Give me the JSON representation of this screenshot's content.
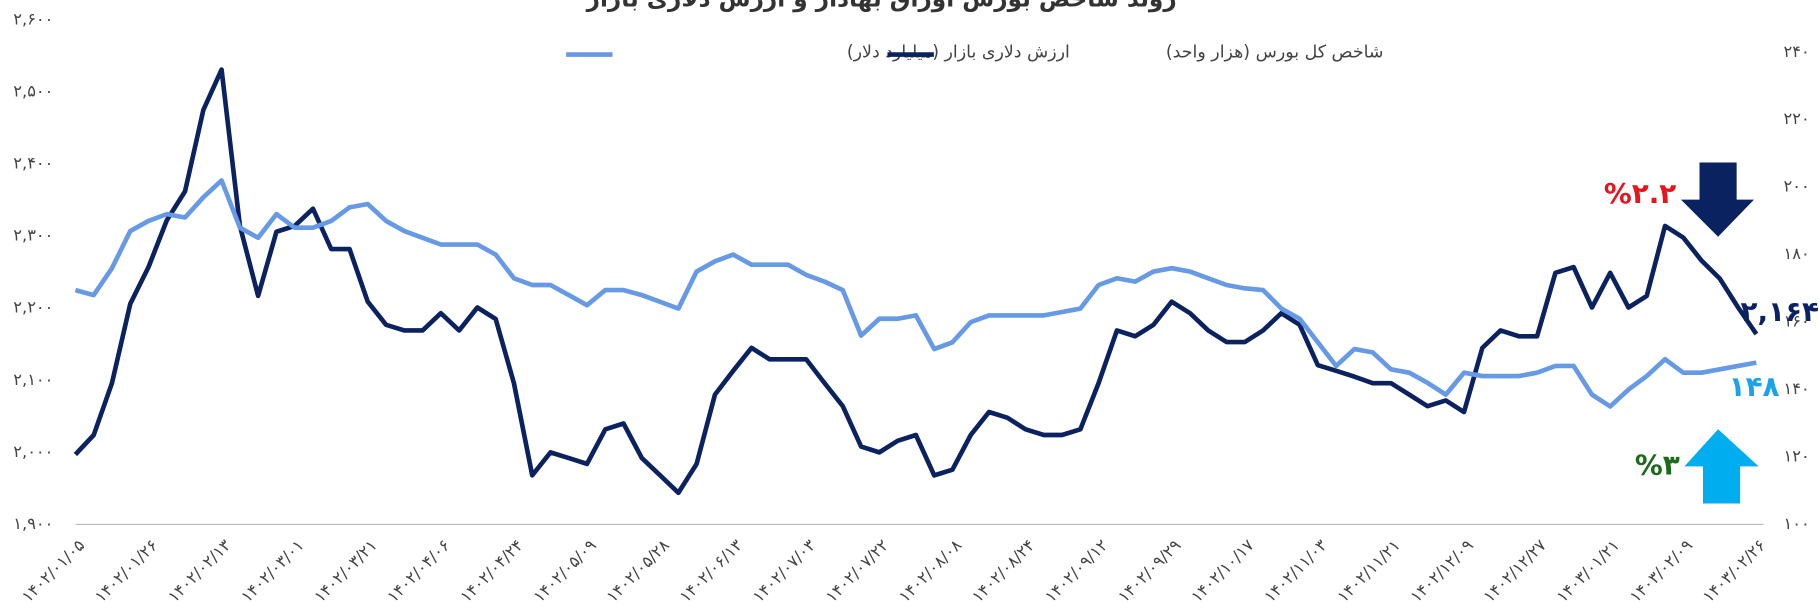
{
  "chart_data": {
    "type": "line",
    "title": "روند شاخص بورس اوراق بهادار و ارزش دلاری بازار",
    "categories": [
      "۱۴۰۲/۰۱/۰۵",
      null,
      null,
      null,
      "۱۴۰۲/۰۱/۲۶",
      null,
      null,
      null,
      "۱۴۰۲/۰۲/۱۳",
      null,
      null,
      null,
      "۱۴۰۲/۰۳/۰۱",
      null,
      null,
      null,
      "۱۴۰۲/۰۳/۲۱",
      null,
      null,
      null,
      "۱۴۰۲/۰۴/۰۶",
      null,
      null,
      null,
      "۱۴۰۲/۰۴/۲۴",
      null,
      null,
      null,
      "۱۴۰۲/۰۵/۰۹",
      null,
      null,
      null,
      "۱۴۰۲/۰۵/۲۸",
      null,
      null,
      null,
      "۱۴۰۲/۰۶/۱۳",
      null,
      null,
      null,
      "۱۴۰۲/۰۷/۰۳",
      null,
      null,
      null,
      "۱۴۰۲/۰۷/۲۲",
      null,
      null,
      null,
      "۱۴۰۲/۰۸/۰۸",
      null,
      null,
      null,
      "۱۴۰۲/۰۸/۲۴",
      null,
      null,
      null,
      "۱۴۰۲/۰۹/۱۲",
      null,
      null,
      null,
      "۱۴۰۲/۰۹/۲۹",
      null,
      null,
      null,
      "۱۴۰۲/۱۰/۱۷",
      null,
      null,
      null,
      "۱۴۰۲/۱۱/۰۳",
      null,
      null,
      null,
      "۱۴۰۲/۱۱/۲۱",
      null,
      null,
      null,
      "۱۴۰۲/۱۲/۰۹",
      null,
      null,
      null,
      "۱۴۰۲/۱۲/۲۷",
      null,
      null,
      null,
      "۱۴۰۳/۰۱/۲۱",
      null,
      null,
      null,
      "۱۴۰۳/۰۲/۰۹",
      null,
      null,
      null,
      "۱۴۰۳/۰۲/۲۶"
    ],
    "series": [
      {
        "name": "شاخص کل بورس (هزار واحد)",
        "color": "#0b2260",
        "axis": "y",
        "values": [
          1997,
          2024,
          2096,
          2206,
          2257,
          2322,
          2362,
          2475,
          2531,
          2314,
          2217,
          2306,
          2314,
          2338,
          2282,
          2282,
          2209,
          2177,
          2169,
          2169,
          2193,
          2169,
          2201,
          2185,
          2096,
          1968,
          2000,
          1992,
          1984,
          2032,
          2040,
          1992,
          1968,
          1944,
          1984,
          2080,
          2113,
          2145,
          2129,
          2129,
          2129,
          2096,
          2064,
          2008,
          2000,
          2016,
          2024,
          1968,
          1976,
          2024,
          2056,
          2048,
          2032,
          2024,
          2024,
          2032,
          2096,
          2169,
          2161,
          2177,
          2209,
          2193,
          2169,
          2153,
          2153,
          2169,
          2193,
          2177,
          2121,
          2113,
          2105,
          2096,
          2096,
          2080,
          2064,
          2072,
          2056,
          2145,
          2169,
          2161,
          2161,
          2249,
          2257,
          2201,
          2249,
          2201,
          2217,
          2314,
          2298,
          2266,
          2241,
          2201,
          2164
        ],
        "value_labels": [
          null,
          null,
          null,
          null,
          null,
          null,
          null,
          null,
          null,
          null,
          null,
          null,
          null,
          null,
          null,
          null,
          null,
          null,
          null,
          null,
          null,
          null,
          null,
          null,
          null,
          null,
          null,
          null,
          null,
          null,
          null,
          null,
          null,
          null,
          null,
          null,
          null,
          null,
          null,
          null,
          null,
          null,
          null,
          null,
          null,
          null,
          null,
          null,
          null,
          null,
          null,
          null,
          null,
          null,
          null,
          null,
          null,
          null,
          null,
          null,
          null,
          null,
          null,
          null,
          null,
          null,
          null,
          null,
          null,
          null,
          null,
          null,
          null,
          null,
          null,
          null,
          null,
          null,
          null,
          null,
          null,
          null,
          null,
          null,
          null,
          null,
          null,
          null,
          null,
          null,
          null,
          null,
          "۲,۱۶۴"
        ]
      },
      {
        "name": "ارزش دلاری بازار (میلیارد دلار)",
        "color": "#6699e6",
        "axis": "y2",
        "values": [
          169.5,
          168,
          176,
          187,
          190,
          192,
          191,
          197,
          202,
          188,
          185,
          192,
          188,
          188,
          190,
          194,
          195,
          190,
          187,
          185,
          183,
          183,
          183,
          180,
          173,
          171,
          171,
          168,
          165,
          169.5,
          169.5,
          168,
          166,
          164,
          175,
          178,
          180,
          177,
          177,
          177,
          174,
          172,
          169.5,
          156,
          161,
          161,
          162,
          152,
          154,
          160,
          162,
          162,
          162,
          162,
          163,
          164,
          171,
          173,
          172,
          175,
          176,
          175,
          173,
          171,
          170,
          169.5,
          164,
          161,
          154,
          147,
          152,
          151,
          146,
          145,
          142,
          138.5,
          145,
          144,
          144,
          144,
          145,
          147,
          147,
          138.5,
          135,
          140,
          144,
          149,
          145,
          145,
          146,
          147,
          148
        ],
        "value_labels": [
          null,
          null,
          null,
          null,
          null,
          null,
          null,
          null,
          null,
          null,
          null,
          null,
          null,
          null,
          null,
          null,
          null,
          null,
          null,
          null,
          null,
          null,
          null,
          null,
          null,
          null,
          null,
          null,
          null,
          null,
          null,
          null,
          null,
          null,
          null,
          null,
          null,
          null,
          null,
          null,
          null,
          null,
          null,
          null,
          null,
          null,
          null,
          null,
          null,
          null,
          null,
          null,
          null,
          null,
          null,
          null,
          null,
          null,
          null,
          null,
          null,
          null,
          null,
          null,
          null,
          null,
          null,
          null,
          null,
          null,
          null,
          null,
          null,
          null,
          null,
          null,
          null,
          null,
          null,
          null,
          null,
          null,
          null,
          null,
          null,
          null,
          null,
          null,
          null,
          null,
          null,
          null,
          "۱۴۸"
        ]
      }
    ],
    "ylim": [
      1900,
      2600
    ],
    "yticks": [
      {
        "value": 1900,
        "label": "۱,۹۰۰"
      },
      {
        "value": 2000,
        "label": "۲,۰۰۰"
      },
      {
        "value": 2100,
        "label": "۲,۱۰۰"
      },
      {
        "value": 2200,
        "label": "۲,۲۰۰"
      },
      {
        "value": 2300,
        "label": "۲,۳۰۰"
      },
      {
        "value": 2400,
        "label": "۲,۴۰۰"
      },
      {
        "value": 2500,
        "label": "۲,۵۰۰"
      },
      {
        "value": 2600,
        "label": "۲,۶۰۰"
      }
    ],
    "y2lim": [
      100,
      240
    ],
    "y2ticks": [
      {
        "value": 100,
        "label": "۱۰۰"
      },
      {
        "value": 120,
        "label": "۱۲۰"
      },
      {
        "value": 140,
        "label": "۱۴۰"
      },
      {
        "value": 160,
        "label": "۱۶۰"
      },
      {
        "value": 180,
        "label": "۱۸۰"
      },
      {
        "value": 200,
        "label": "۲۰۰"
      },
      {
        "value": 220,
        "label": "۲۲۰"
      },
      {
        "value": 240,
        "label": "۲۴۰"
      }
    ],
    "annotations": [
      {
        "text": "%۲.۲",
        "color": "#e8141c"
      },
      {
        "text": "%۳",
        "color": "#1b6b1b"
      }
    ],
    "legend": "top"
  }
}
